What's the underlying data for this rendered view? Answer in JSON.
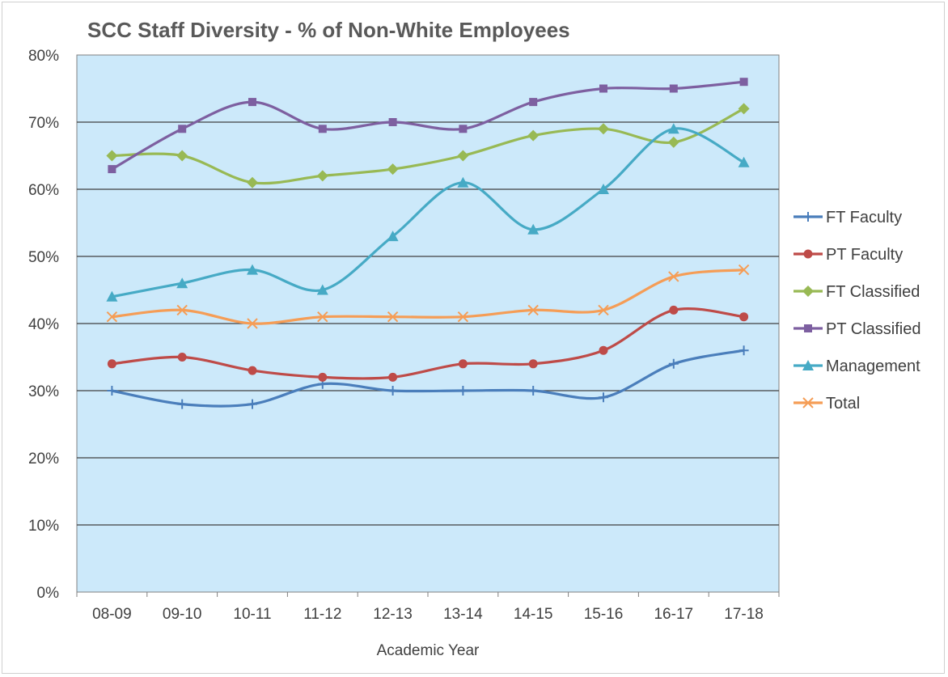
{
  "chart_data": {
    "type": "line",
    "title": "SCC Staff Diversity - % of Non-White Employees",
    "xlabel": "Academic Year",
    "ylabel": "",
    "categories": [
      "08-09",
      "09-10",
      "10-11",
      "11-12",
      "12-13",
      "13-14",
      "14-15",
      "15-16",
      "16-17",
      "17-18"
    ],
    "ylim": [
      0,
      80
    ],
    "yticks": [
      0,
      10,
      20,
      30,
      40,
      50,
      60,
      70,
      80
    ],
    "ytick_suffix": "%",
    "grid": true,
    "plot_background": "#cce9fa",
    "legend_position": "right",
    "series": [
      {
        "name": "FT Faculty",
        "color": "#4a7ebb",
        "marker": "plus",
        "values": [
          30,
          28,
          28,
          31,
          30,
          30,
          30,
          29,
          34,
          36
        ]
      },
      {
        "name": "PT Faculty",
        "color": "#be4b48",
        "marker": "circle",
        "values": [
          34,
          35,
          33,
          32,
          32,
          34,
          34,
          36,
          42,
          41
        ]
      },
      {
        "name": "FT Classified",
        "color": "#98b954",
        "marker": "diamond",
        "values": [
          65,
          65,
          61,
          62,
          63,
          65,
          68,
          69,
          67,
          72
        ]
      },
      {
        "name": "PT Classified",
        "color": "#7d5fa0",
        "marker": "square",
        "values": [
          63,
          69,
          73,
          69,
          70,
          69,
          73,
          75,
          75,
          76
        ]
      },
      {
        "name": "Management",
        "color": "#46aac5",
        "marker": "triangle",
        "values": [
          44,
          46,
          48,
          45,
          53,
          61,
          54,
          60,
          69,
          64
        ]
      },
      {
        "name": "Total",
        "color": "#f59d56",
        "marker": "x",
        "values": [
          41,
          42,
          40,
          41,
          41,
          41,
          42,
          42,
          47,
          48
        ]
      }
    ]
  }
}
